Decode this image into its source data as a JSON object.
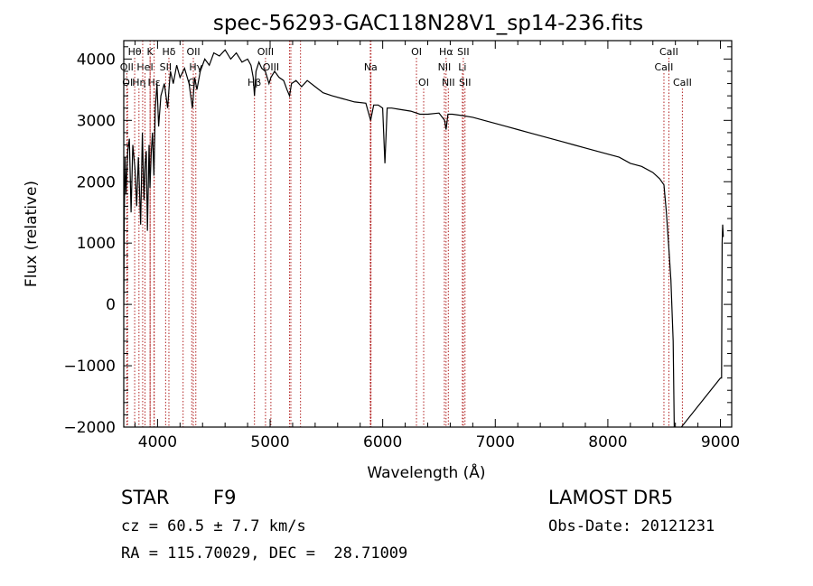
{
  "chart_data": {
    "type": "line",
    "title": "spec-56293-GAC118N28V1_sp14-236.fits",
    "xlabel": "Wavelength (Å)",
    "ylabel": "Flux (relative)",
    "xlim": [
      3700,
      9100
    ],
    "ylim": [
      -2000,
      4300
    ],
    "xticks": [
      4000,
      5000,
      6000,
      7000,
      8000,
      9000
    ],
    "yticks": [
      -2000,
      -1000,
      0,
      1000,
      2000,
      3000,
      4000
    ],
    "grid": false,
    "spectrum": {
      "x": [
        3700,
        3705,
        3712,
        3720,
        3735,
        3750,
        3765,
        3780,
        3800,
        3815,
        3830,
        3850,
        3865,
        3880,
        3890,
        3900,
        3910,
        3925,
        3933,
        3945,
        3955,
        3968,
        3980,
        3995,
        4010,
        4030,
        4060,
        4090,
        4101,
        4115,
        4140,
        4170,
        4200,
        4240,
        4280,
        4310,
        4330,
        4350,
        4380,
        4420,
        4460,
        4500,
        4550,
        4600,
        4650,
        4700,
        4750,
        4800,
        4830,
        4850,
        4861,
        4875,
        4900,
        4925,
        4957,
        4990,
        5007,
        5040,
        5080,
        5120,
        5150,
        5172,
        5190,
        5230,
        5280,
        5330,
        5400,
        5470,
        5550,
        5650,
        5750,
        5850,
        5893,
        5920,
        5960,
        6000,
        6020,
        6040,
        6080,
        6150,
        6250,
        6330,
        6400,
        6500,
        6550,
        6563,
        6580,
        6620,
        6700,
        6800,
        6900,
        7000,
        7100,
        7200,
        7300,
        7400,
        7500,
        7600,
        7700,
        7800,
        7900,
        8000,
        8100,
        8200,
        8300,
        8400,
        8460,
        8498,
        8520,
        8542,
        8560,
        8580,
        8590,
        8600,
        8610,
        9000,
        9010,
        9015,
        9020,
        9025
      ],
      "flux": [
        0,
        1500,
        2400,
        1800,
        2500,
        2700,
        1500,
        2600,
        2200,
        1600,
        2400,
        1300,
        2800,
        1700,
        2300,
        2500,
        1200,
        2600,
        1900,
        2500,
        2800,
        2100,
        3200,
        3600,
        2900,
        3400,
        3600,
        3200,
        3500,
        3800,
        3600,
        3900,
        3700,
        3850,
        3600,
        3200,
        3700,
        3500,
        3800,
        4000,
        3900,
        4100,
        4050,
        4150,
        4000,
        4100,
        3950,
        4000,
        3900,
        3700,
        3400,
        3800,
        3950,
        3850,
        3800,
        3600,
        3700,
        3800,
        3700,
        3650,
        3500,
        3400,
        3600,
        3650,
        3550,
        3650,
        3550,
        3450,
        3400,
        3350,
        3300,
        3280,
        3000,
        3250,
        3250,
        3200,
        2300,
        3200,
        3200,
        3180,
        3150,
        3100,
        3100,
        3120,
        3000,
        2850,
        3100,
        3100,
        3080,
        3050,
        3000,
        2950,
        2900,
        2850,
        2800,
        2750,
        2700,
        2650,
        2600,
        2550,
        2500,
        2450,
        2400,
        2300,
        2250,
        2150,
        2050,
        1950,
        1500,
        900,
        400,
        -600,
        -2000,
        -2050,
        -2100,
        -1200,
        -1200,
        1000,
        1300,
        1100
      ]
    },
    "line_markers": [
      {
        "label": "Hθ",
        "x": 3797,
        "row": 1
      },
      {
        "label": "K",
        "x": 3934,
        "row": 1
      },
      {
        "label": "Hδ",
        "x": 4101,
        "row": 1
      },
      {
        "label": "OII",
        "x": 4318,
        "row": 1
      },
      {
        "label": "OIII",
        "x": 4959,
        "row": 1
      },
      {
        "label": "OI",
        "x": 6300,
        "row": 1
      },
      {
        "label": "Hα",
        "x": 6563,
        "row": 1
      },
      {
        "label": "SII",
        "x": 6716,
        "row": 1
      },
      {
        "label": "CaII",
        "x": 8542,
        "row": 1
      },
      {
        "label": "OII",
        "x": 3727,
        "row": 2
      },
      {
        "label": "HeI",
        "x": 3889,
        "row": 2
      },
      {
        "label": "SII",
        "x": 4072,
        "row": 2
      },
      {
        "label": "Hγ",
        "x": 4340,
        "row": 2
      },
      {
        "label": "OIII",
        "x": 5007,
        "row": 2
      },
      {
        "label": "Na",
        "x": 5893,
        "row": 2
      },
      {
        "label": "NII",
        "x": 6548,
        "row": 2
      },
      {
        "label": "Li",
        "x": 6708,
        "row": 2
      },
      {
        "label": "CaII",
        "x": 8498,
        "row": 2
      },
      {
        "label": "OI",
        "x": 6364,
        "row": 3
      },
      {
        "label": "NII",
        "x": 6583,
        "row": 3
      },
      {
        "label": "SII",
        "x": 6731,
        "row": 3
      },
      {
        "label": "CaII",
        "x": 8662,
        "row": 3
      },
      {
        "label": "OI",
        "x": 3734,
        "row": 3
      },
      {
        "label": "Hη",
        "x": 3835,
        "row": 3
      },
      {
        "label": "Hε",
        "x": 3970,
        "row": 3
      },
      {
        "label": "G",
        "x": 4304,
        "row": 3
      },
      {
        "label": "Hβ",
        "x": 4861,
        "row": 3
      }
    ],
    "extra_lines": [
      3868,
      3934,
      3970,
      4227,
      5172,
      5184,
      5270,
      5890,
      5896
    ]
  },
  "info": {
    "object_class": "STAR",
    "subclass": "F9",
    "redshift": "cz = 60.5 ± 7.7 km/s",
    "coords": "RA = 115.70029, DEC =  28.71009",
    "survey": "LAMOST DR5",
    "obs_date": "Obs-Date: 20121231"
  },
  "colors": {
    "axis": "#000000",
    "spectrum": "#000000",
    "line_marker": "#b22222"
  }
}
